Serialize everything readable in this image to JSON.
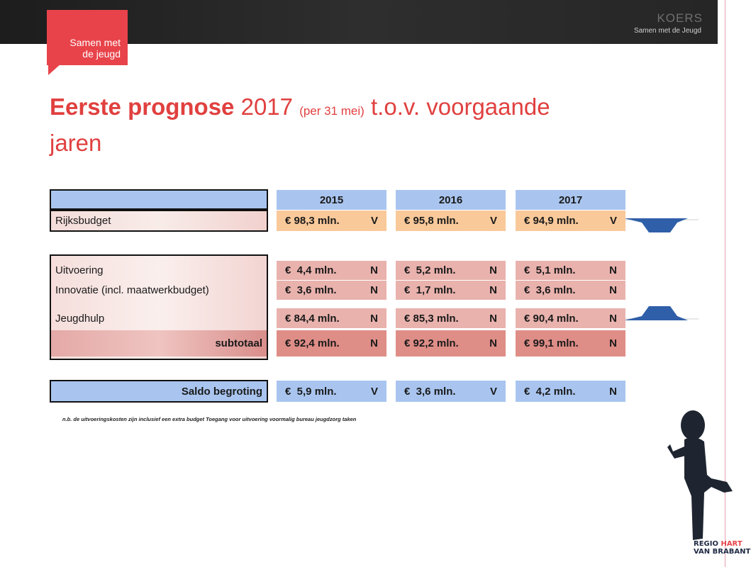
{
  "header": {
    "badge": [
      "Samen met",
      "de jeugd"
    ],
    "brand": "KOERS",
    "brand_sub": "Samen met de Jeugd"
  },
  "title": {
    "bold": "Eerste prognose",
    "year": "2017",
    "note": "(per 31 mei)",
    "rest": "t.o.v. voorgaande",
    "line2": "jaren"
  },
  "table": {
    "columns": [
      "2015",
      "2016",
      "2017"
    ],
    "rows": [
      {
        "label": "Rijksbudget",
        "cells": [
          [
            "€ 98,3 mln.",
            "V"
          ],
          [
            "€ 95,8 mln.",
            "V"
          ],
          [
            "€ 94,9 mln.",
            "V"
          ]
        ]
      },
      {
        "label": "Uitvoering",
        "cells": [
          [
            "€  4,4 mln.",
            "N"
          ],
          [
            "€  5,2 mln.",
            "N"
          ],
          [
            "€  5,1 mln.",
            "N"
          ]
        ]
      },
      {
        "label": "Innovatie (incl. maatwerkbudget)",
        "cells": [
          [
            "€  3,6 mln.",
            "N"
          ],
          [
            "€  1,7 mln.",
            "N"
          ],
          [
            "€  3,6 mln.",
            "N"
          ]
        ]
      },
      {
        "label": "Jeugdhulp",
        "cells": [
          [
            "€ 84,4 mln.",
            "N"
          ],
          [
            "€ 85,3 mln.",
            "N"
          ],
          [
            "€ 90,4 mln.",
            "N"
          ]
        ]
      },
      {
        "label": "subtotaal",
        "cells": [
          [
            "€ 92,4 mln.",
            "N"
          ],
          [
            "€ 92,2 mln.",
            "N"
          ],
          [
            "€ 99,1 mln.",
            "N"
          ]
        ]
      },
      {
        "label": "Saldo begroting",
        "cells": [
          [
            "€  5,9 mln.",
            "V"
          ],
          [
            "€  3,6 mln.",
            "V"
          ],
          [
            "€  4,2 mln.",
            "N"
          ]
        ]
      }
    ]
  },
  "footnote": "n.b. de uitvoeringskosten zijn inclusief een extra budget Toegang voor uitvoering voormalig bureau jeugdzorg taken",
  "logo": {
    "regio": "REGIO",
    "hart": "HART",
    "brabant": "VAN BRABANT"
  }
}
